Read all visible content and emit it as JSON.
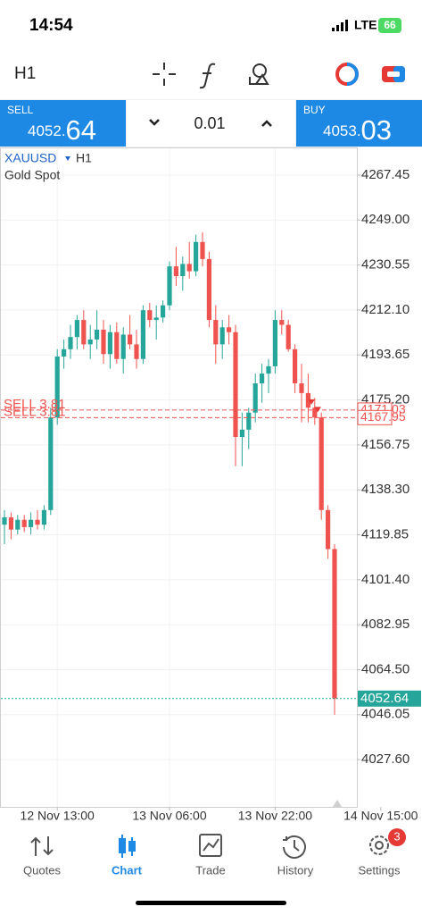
{
  "status_bar": {
    "time": "14:54",
    "network": "LTE",
    "battery": "66"
  },
  "toolbar": {
    "timeframe": "H1"
  },
  "quote_bar": {
    "sell": {
      "label": "SELL",
      "price_main": "4052.",
      "price_big": "64"
    },
    "lot": "0.01",
    "buy": {
      "label": "BUY",
      "price_main": "4053.",
      "price_big": "03"
    }
  },
  "chart": {
    "symbol": "XAUUSD",
    "timeframe": "H1",
    "description": "Gold Spot",
    "ylim": [
      4008.2,
      4278.8
    ],
    "yticks": [
      4267.45,
      {
        "value": 4249.0,
        "label": "4249.00"
      },
      4230.55,
      {
        "value": 4212.1,
        "label": "4212.10"
      },
      4193.65,
      {
        "value": 4175.2,
        "label": "4175.20"
      },
      4156.75,
      {
        "value": 4138.3,
        "label": "4138.30"
      },
      4119.85,
      {
        "value": 4101.4,
        "label": "4101.40"
      },
      4082.95,
      {
        "value": 4064.5,
        "label": "4064.50"
      },
      4046.05,
      {
        "value": 4027.6,
        "label": "4027.60"
      }
    ],
    "xticks": [
      {
        "value": 8,
        "label": "12 Nov 13:00"
      },
      {
        "value": 25,
        "label": "13 Nov 06:00"
      },
      {
        "value": 41,
        "label": "13 Nov 22:00"
      },
      {
        "value": 57,
        "label": "14 Nov 15:00"
      }
    ],
    "up_color": "#26a69a",
    "down_color": "#ef5350",
    "candles": [
      [
        4124,
        4130,
        4116,
        4127
      ],
      [
        4127,
        4129,
        4118,
        4122
      ],
      [
        4122,
        4128,
        4120,
        4126
      ],
      [
        4126,
        4128,
        4121,
        4123
      ],
      [
        4123,
        4129,
        4120,
        4126
      ],
      [
        4126,
        4130,
        4122,
        4124
      ],
      [
        4124,
        4132,
        4122,
        4130
      ],
      [
        4130,
        4172,
        4128,
        4168
      ],
      [
        4168,
        4196,
        4165,
        4193
      ],
      [
        4193,
        4200,
        4188,
        4196
      ],
      [
        4196,
        4206,
        4192,
        4201
      ],
      [
        4201,
        4210,
        4196,
        4208
      ],
      [
        4208,
        4212,
        4196,
        4198
      ],
      [
        4198,
        4206,
        4192,
        4200
      ],
      [
        4200,
        4212,
        4196,
        4204
      ],
      [
        4204,
        4208,
        4190,
        4194
      ],
      [
        4194,
        4206,
        4188,
        4203
      ],
      [
        4203,
        4207,
        4190,
        4192
      ],
      [
        4192,
        4205,
        4186,
        4202
      ],
      [
        4202,
        4210,
        4196,
        4198
      ],
      [
        4198,
        4204,
        4188,
        4192
      ],
      [
        4192,
        4214,
        4190,
        4212
      ],
      [
        4212,
        4215,
        4205,
        4208
      ],
      [
        4208,
        4214,
        4200,
        4209
      ],
      [
        4209,
        4216,
        4207,
        4214
      ],
      [
        4214,
        4232,
        4212,
        4230
      ],
      [
        4230,
        4238,
        4222,
        4226
      ],
      [
        4226,
        4234,
        4220,
        4231
      ],
      [
        4231,
        4240,
        4225,
        4228
      ],
      [
        4228,
        4243,
        4226,
        4240
      ],
      [
        4240,
        4244,
        4230,
        4233
      ],
      [
        4233,
        4236,
        4205,
        4208
      ],
      [
        4208,
        4214,
        4190,
        4198
      ],
      [
        4198,
        4208,
        4192,
        4205
      ],
      [
        4205,
        4210,
        4198,
        4203
      ],
      [
        4203,
        4206,
        4148,
        4160
      ],
      [
        4160,
        4170,
        4148,
        4163
      ],
      [
        4163,
        4172,
        4155,
        4170
      ],
      [
        4170,
        4186,
        4166,
        4182
      ],
      [
        4182,
        4190,
        4174,
        4186
      ],
      [
        4186,
        4192,
        4178,
        4189
      ],
      [
        4189,
        4212,
        4186,
        4208
      ],
      [
        4208,
        4212,
        4202,
        4206
      ],
      [
        4206,
        4208,
        4195,
        4196
      ],
      [
        4196,
        4198,
        4178,
        4182
      ],
      [
        4182,
        4190,
        4166,
        4178
      ],
      [
        4178,
        4186,
        4166,
        4172
      ],
      [
        4172,
        4176,
        4165,
        4168
      ],
      [
        4168,
        4170,
        4126,
        4130
      ],
      [
        4130,
        4132,
        4110,
        4114
      ],
      [
        4114,
        4116,
        4046,
        4052.64
      ]
    ],
    "orders": [
      {
        "label": "SELL 3.81",
        "price": 4171.03
      },
      {
        "label": "SELL 3.81",
        "price": 4167.95
      }
    ],
    "current_price": 4052.64
  },
  "nav": {
    "items": [
      "Quotes",
      "Chart",
      "Trade",
      "History",
      "Settings"
    ],
    "active": 1,
    "badge": "3"
  }
}
